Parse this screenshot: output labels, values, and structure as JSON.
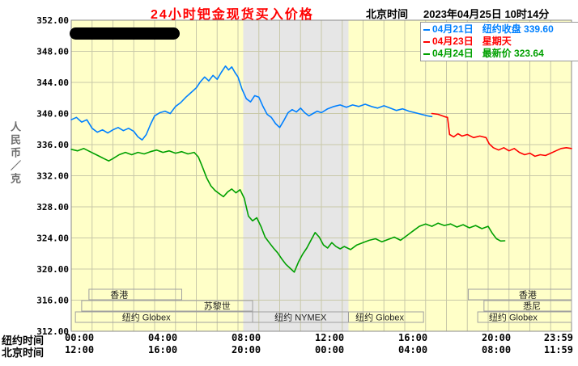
{
  "header": {
    "title": "24小时钯金现货买入价格",
    "timezone_label": "北京时间",
    "datetime": "2023年04月25日 10时14分"
  },
  "legend": {
    "items": [
      {
        "color": "#0080ff",
        "date": "04月21日",
        "desc": "纽约收盘 339.60"
      },
      {
        "color": "#ff0000",
        "date": "04月23日",
        "desc": "星期天"
      },
      {
        "color": "#00a000",
        "date": "04月24日",
        "desc": "最新价 323.64"
      }
    ]
  },
  "axis_rows": {
    "row1_label": "纽约时间",
    "row2_label": "北京时间"
  },
  "chart_data": {
    "type": "line",
    "title": "24小时钯金现货买入价格",
    "ylabel": "人民币／克",
    "ylim": [
      312,
      352
    ],
    "y_tick_step": 4,
    "x_hours": [
      0,
      24
    ],
    "x_ticks": [
      {
        "h": 0,
        "ny": "00:00",
        "bj": "12:00"
      },
      {
        "h": 4,
        "ny": "04:00",
        "bj": "16:00"
      },
      {
        "h": 8,
        "ny": "08:00",
        "bj": "20:00"
      },
      {
        "h": 12,
        "ny": "12:00",
        "bj": "00:00"
      },
      {
        "h": 16,
        "ny": "16:00",
        "bj": "04:00"
      },
      {
        "h": 20,
        "ny": "20:00",
        "bj": "08:00"
      },
      {
        "h": 23.983,
        "ny": "23:59",
        "bj": "11:59",
        "align_end": true
      }
    ],
    "band": {
      "start_h": 8.25,
      "end_h": 13.3,
      "color": "#e6e6e6"
    },
    "sessions": [
      {
        "row": 0,
        "start_h": 0.85,
        "end_h": 5.3,
        "label": "香港",
        "label_h": 2.3
      },
      {
        "row": 0,
        "start_h": 19.05,
        "end_h": 24,
        "label": "香港",
        "label_h": 21.9
      },
      {
        "row": 1,
        "start_h": 0.5,
        "end_h": 8.7,
        "label": "苏黎世",
        "label_h": 7.0
      },
      {
        "row": 1,
        "start_h": 19.8,
        "end_h": 24,
        "label": "悉尼",
        "label_h": 22.1
      },
      {
        "row": 2,
        "start_h": 0.2,
        "end_h": 8.7,
        "label": "纽约 Globex",
        "label_h": 3.6
      },
      {
        "row": 2,
        "start_h": 8.7,
        "end_h": 13.3,
        "label": "纽约 NYMEX",
        "label_h": 11.0
      },
      {
        "row": 2,
        "start_h": 13.3,
        "end_h": 16.9,
        "label": "纽约 Globex",
        "label_h": 14.8
      },
      {
        "row": 2,
        "start_h": 19.5,
        "end_h": 24,
        "label": "纽约 Globex",
        "label_h": 21.2
      }
    ],
    "plot_bg": "#ffffc8",
    "grid_color": "#c8c8a8",
    "axis_color": "#8a8a8a",
    "series": [
      {
        "name": "04月21日 纽约收盘",
        "color": "#0080ff",
        "close": 339.6,
        "points": [
          [
            0,
            339.2
          ],
          [
            0.25,
            339.5
          ],
          [
            0.5,
            338.9
          ],
          [
            0.75,
            339.2
          ],
          [
            1,
            338.1
          ],
          [
            1.25,
            337.6
          ],
          [
            1.5,
            337.9
          ],
          [
            1.75,
            337.5
          ],
          [
            2,
            337.9
          ],
          [
            2.25,
            338.2
          ],
          [
            2.5,
            337.8
          ],
          [
            2.75,
            338.1
          ],
          [
            3,
            337.7
          ],
          [
            3.2,
            337.0
          ],
          [
            3.4,
            336.6
          ],
          [
            3.6,
            337.3
          ],
          [
            3.8,
            338.6
          ],
          [
            4,
            339.7
          ],
          [
            4.25,
            340.1
          ],
          [
            4.5,
            340.3
          ],
          [
            4.75,
            340.0
          ],
          [
            5,
            340.9
          ],
          [
            5.25,
            341.4
          ],
          [
            5.5,
            342.1
          ],
          [
            5.75,
            342.7
          ],
          [
            6,
            343.3
          ],
          [
            6.2,
            344.1
          ],
          [
            6.4,
            344.7
          ],
          [
            6.6,
            344.2
          ],
          [
            6.8,
            344.9
          ],
          [
            7,
            344.4
          ],
          [
            7.2,
            345.3
          ],
          [
            7.4,
            346.1
          ],
          [
            7.55,
            345.6
          ],
          [
            7.7,
            346.0
          ],
          [
            7.85,
            345.3
          ],
          [
            8,
            344.7
          ],
          [
            8.2,
            343.1
          ],
          [
            8.4,
            341.9
          ],
          [
            8.6,
            341.5
          ],
          [
            8.8,
            342.3
          ],
          [
            9,
            342.1
          ],
          [
            9.2,
            340.9
          ],
          [
            9.4,
            339.9
          ],
          [
            9.6,
            339.5
          ],
          [
            9.8,
            338.7
          ],
          [
            10,
            338.2
          ],
          [
            10.2,
            339.1
          ],
          [
            10.4,
            340.1
          ],
          [
            10.6,
            340.5
          ],
          [
            10.8,
            340.2
          ],
          [
            11,
            340.7
          ],
          [
            11.2,
            340.1
          ],
          [
            11.4,
            339.7
          ],
          [
            11.6,
            340.0
          ],
          [
            11.8,
            340.3
          ],
          [
            12,
            340.1
          ],
          [
            12.3,
            340.6
          ],
          [
            12.6,
            340.9
          ],
          [
            12.9,
            341.1
          ],
          [
            13.2,
            340.8
          ],
          [
            13.5,
            341.1
          ],
          [
            13.8,
            340.9
          ],
          [
            14.1,
            341.2
          ],
          [
            14.4,
            340.9
          ],
          [
            14.7,
            340.7
          ],
          [
            15,
            341.0
          ],
          [
            15.3,
            340.7
          ],
          [
            15.6,
            340.4
          ],
          [
            15.9,
            340.6
          ],
          [
            16.2,
            340.3
          ],
          [
            16.5,
            340.1
          ],
          [
            16.8,
            339.9
          ],
          [
            17.1,
            339.7
          ],
          [
            17.3,
            339.6
          ]
        ]
      },
      {
        "name": "04月23日 星期天",
        "color": "#ff0000",
        "points": [
          [
            17.3,
            340.0
          ],
          [
            17.6,
            339.9
          ],
          [
            17.9,
            339.6
          ],
          [
            18.05,
            339.5
          ],
          [
            18.15,
            337.3
          ],
          [
            18.35,
            337.0
          ],
          [
            18.55,
            337.4
          ],
          [
            18.75,
            337.1
          ],
          [
            19,
            337.3
          ],
          [
            19.3,
            336.9
          ],
          [
            19.6,
            337.1
          ],
          [
            19.9,
            336.9
          ],
          [
            20.05,
            336.1
          ],
          [
            20.25,
            335.6
          ],
          [
            20.5,
            335.3
          ],
          [
            20.75,
            335.6
          ],
          [
            21,
            335.2
          ],
          [
            21.25,
            335.5
          ],
          [
            21.5,
            335.0
          ],
          [
            21.75,
            334.7
          ],
          [
            22,
            334.9
          ],
          [
            22.25,
            334.5
          ],
          [
            22.5,
            334.7
          ],
          [
            22.75,
            334.6
          ],
          [
            23,
            334.9
          ],
          [
            23.25,
            335.2
          ],
          [
            23.5,
            335.5
          ],
          [
            23.75,
            335.6
          ],
          [
            24,
            335.5
          ]
        ]
      },
      {
        "name": "04月24日 最新价",
        "color": "#00a000",
        "last": 323.64,
        "points": [
          [
            0,
            335.4
          ],
          [
            0.3,
            335.2
          ],
          [
            0.6,
            335.5
          ],
          [
            0.9,
            335.1
          ],
          [
            1.2,
            334.7
          ],
          [
            1.5,
            334.3
          ],
          [
            1.8,
            333.9
          ],
          [
            2,
            334.2
          ],
          [
            2.3,
            334.7
          ],
          [
            2.6,
            335.0
          ],
          [
            2.9,
            334.7
          ],
          [
            3.2,
            335.0
          ],
          [
            3.5,
            334.8
          ],
          [
            3.8,
            335.1
          ],
          [
            4.1,
            335.3
          ],
          [
            4.4,
            335.0
          ],
          [
            4.7,
            335.2
          ],
          [
            5,
            334.9
          ],
          [
            5.3,
            335.1
          ],
          [
            5.6,
            334.8
          ],
          [
            5.9,
            335.0
          ],
          [
            6.1,
            334.4
          ],
          [
            6.3,
            333.1
          ],
          [
            6.5,
            331.7
          ],
          [
            6.7,
            330.7
          ],
          [
            6.9,
            330.1
          ],
          [
            7.1,
            329.7
          ],
          [
            7.3,
            329.3
          ],
          [
            7.5,
            329.9
          ],
          [
            7.7,
            330.3
          ],
          [
            7.9,
            329.8
          ],
          [
            8.1,
            330.2
          ],
          [
            8.3,
            329.1
          ],
          [
            8.5,
            326.8
          ],
          [
            8.7,
            326.2
          ],
          [
            8.9,
            326.6
          ],
          [
            9.1,
            325.5
          ],
          [
            9.3,
            324.1
          ],
          [
            9.5,
            323.4
          ],
          [
            9.7,
            322.7
          ],
          [
            9.9,
            322.1
          ],
          [
            10.1,
            321.3
          ],
          [
            10.3,
            320.6
          ],
          [
            10.5,
            320.1
          ],
          [
            10.7,
            319.6
          ],
          [
            10.9,
            320.9
          ],
          [
            11.1,
            321.9
          ],
          [
            11.3,
            322.7
          ],
          [
            11.5,
            323.7
          ],
          [
            11.7,
            324.7
          ],
          [
            11.9,
            324.1
          ],
          [
            12.1,
            323.1
          ],
          [
            12.3,
            322.7
          ],
          [
            12.5,
            323.4
          ],
          [
            12.7,
            322.9
          ],
          [
            12.9,
            322.6
          ],
          [
            13.1,
            322.9
          ],
          [
            13.4,
            322.5
          ],
          [
            13.7,
            323.1
          ],
          [
            14,
            323.4
          ],
          [
            14.3,
            323.7
          ],
          [
            14.6,
            323.9
          ],
          [
            14.9,
            323.5
          ],
          [
            15.2,
            323.8
          ],
          [
            15.5,
            324.1
          ],
          [
            15.8,
            323.7
          ],
          [
            16.1,
            324.3
          ],
          [
            16.4,
            324.9
          ],
          [
            16.7,
            325.5
          ],
          [
            17,
            325.8
          ],
          [
            17.3,
            325.5
          ],
          [
            17.6,
            325.9
          ],
          [
            17.9,
            325.6
          ],
          [
            18.2,
            325.8
          ],
          [
            18.5,
            325.4
          ],
          [
            18.8,
            325.7
          ],
          [
            19.1,
            325.3
          ],
          [
            19.4,
            325.6
          ],
          [
            19.7,
            325.2
          ],
          [
            20,
            325.5
          ],
          [
            20.2,
            324.6
          ],
          [
            20.4,
            323.9
          ],
          [
            20.6,
            323.6
          ],
          [
            20.8,
            323.64
          ]
        ]
      }
    ]
  }
}
